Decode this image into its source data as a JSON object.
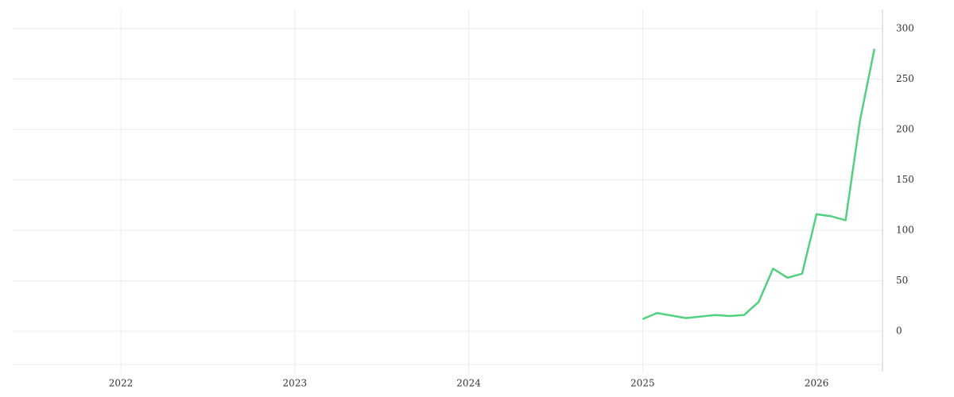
{
  "chart_data": {
    "type": "line",
    "x": [
      2025.0,
      2025.083,
      2025.25,
      2025.417,
      2025.5,
      2025.583,
      2025.667,
      2025.75,
      2025.833,
      2025.917,
      2026.0,
      2026.083,
      2026.167,
      2026.25,
      2026.333
    ],
    "series": [
      {
        "color": "#52d07f",
        "values": [
          12,
          18,
          13,
          16,
          15,
          16,
          29,
          62,
          53,
          57,
          116,
          114,
          110,
          209,
          280
        ]
      }
    ],
    "xlim": [
      2021.378,
      2026.379
    ],
    "xticks": [
      2022,
      2023,
      2024,
      2025,
      2026
    ],
    "ylim": [
      -33,
      319
    ],
    "yticks": [
      0,
      50,
      100,
      150,
      200,
      250,
      300
    ],
    "grid": true
  }
}
